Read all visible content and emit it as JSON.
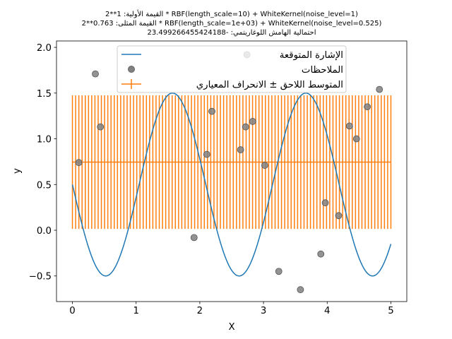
{
  "chart_data": {
    "type": "line",
    "title_lines": [
      "القيمة الأولية: 1**2 * RBF(length_scale=10) + WhiteKernel(noise_level=1)",
      "القيمة المثلى: 0.763**2 * RBF(length_scale=1e+03) + WhiteKernel(noise_level=0.525)",
      "احتمالية الهامش اللوغاريتمي: -23.499266455424188"
    ],
    "xlabel": "X",
    "ylabel": "y",
    "xlim": [
      -0.25,
      5.25
    ],
    "ylim": [
      -0.78,
      2.07
    ],
    "xticks": [
      0,
      1,
      2,
      3,
      4,
      5
    ],
    "yticks": [
      -0.5,
      0.0,
      0.5,
      1.0,
      1.5,
      2.0
    ],
    "xtick_labels": [
      "0",
      "1",
      "2",
      "3",
      "4",
      "5"
    ],
    "ytick_labels": [
      "−0.5",
      "0.0",
      "0.5",
      "1.0",
      "1.5",
      "2.0"
    ],
    "legend_position": "top-center",
    "series": [
      {
        "name": "الإشارة المتوقعة",
        "kind": "line",
        "color": "#1f77b4",
        "function": "0.5 - sin(3x)"
      },
      {
        "name": "الملاحظات",
        "kind": "scatter",
        "color": "#808080",
        "x": [
          0.1,
          0.36,
          0.44,
          1.91,
          2.11,
          2.19,
          2.64,
          2.72,
          2.74,
          2.83,
          3.02,
          3.24,
          3.58,
          3.9,
          3.97,
          4.18,
          4.35,
          4.46,
          4.63,
          4.82
        ],
        "y": [
          0.74,
          1.71,
          1.13,
          -0.08,
          0.83,
          1.3,
          0.88,
          1.13,
          1.92,
          1.19,
          0.71,
          -0.45,
          -0.65,
          -0.26,
          0.3,
          0.16,
          1.14,
          1.0,
          1.35,
          1.54
        ]
      },
      {
        "name": "المتوسط اللاحق ± الانحراف المعياري",
        "kind": "errorbar",
        "color": "#ff7f0e",
        "x_start": 0,
        "x_end": 5,
        "n_points": 100,
        "mean": 0.745,
        "std": 0.73
      }
    ]
  }
}
